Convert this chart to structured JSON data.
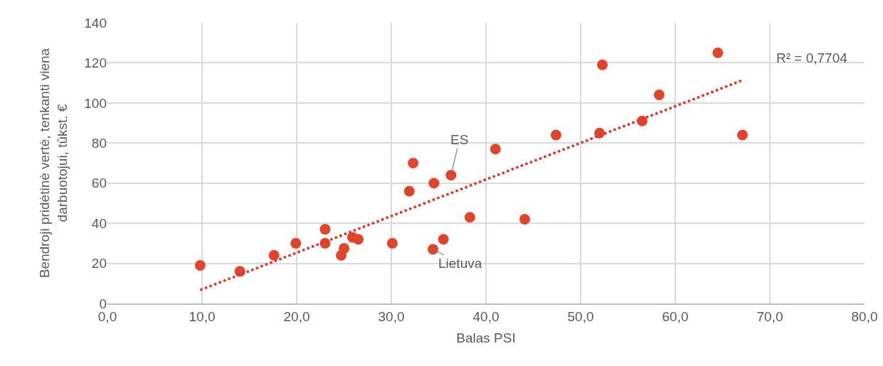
{
  "chart_data": {
    "type": "scatter",
    "xlabel": "Balas PSI",
    "ylabel": "Bendroji pridėtinė vertė, tenkanti viena\ndarbuotojui, tūkst. €",
    "x": [
      9.8,
      14.0,
      17.6,
      19.9,
      23.0,
      23.0,
      24.7,
      25.0,
      25.9,
      26.5,
      30.1,
      31.9,
      32.3,
      34.5,
      34.4,
      35.5,
      36.3,
      38.3,
      41.0,
      44.1,
      47.4,
      52.0,
      52.3,
      56.5,
      58.3,
      64.5,
      67.1
    ],
    "series": [
      {
        "color": "#e0452c",
        "marker": "circle",
        "values": [
          19,
          16,
          24,
          30,
          37,
          30,
          24,
          27.5,
          33,
          32,
          30,
          56,
          70,
          60,
          27,
          32,
          64,
          43,
          77,
          42,
          84,
          85,
          119,
          91,
          104,
          125,
          84
        ]
      },
      {
        "type": "line",
        "color": "#d9372a",
        "line_style": "dotted",
        "marker": "none",
        "x": [
          9.8,
          67.1
        ],
        "values": [
          6.7,
          111.3
        ]
      }
    ],
    "xlim": [
      0,
      80
    ],
    "xticks": [
      {
        "value": 0,
        "label": "0,0"
      },
      {
        "value": 10,
        "label": "10,0"
      },
      {
        "value": 20,
        "label": "20,0"
      },
      {
        "value": 30,
        "label": "30,0"
      },
      {
        "value": 40,
        "label": "40,0"
      },
      {
        "value": 50,
        "label": "50,0"
      },
      {
        "value": 60,
        "label": "60,0"
      },
      {
        "value": 70,
        "label": "70,0"
      },
      {
        "value": 80,
        "label": "80,0"
      }
    ],
    "ylim": [
      0,
      140
    ],
    "yticks": [
      0,
      20,
      40,
      60,
      80,
      100,
      120,
      140
    ],
    "annotations": [
      {
        "text": "ES",
        "x": 36.3,
        "y": 64
      },
      {
        "text": "Lietuva",
        "x": 34.4,
        "y": 27
      },
      "R² = 0,7704"
    ],
    "grid": true
  }
}
